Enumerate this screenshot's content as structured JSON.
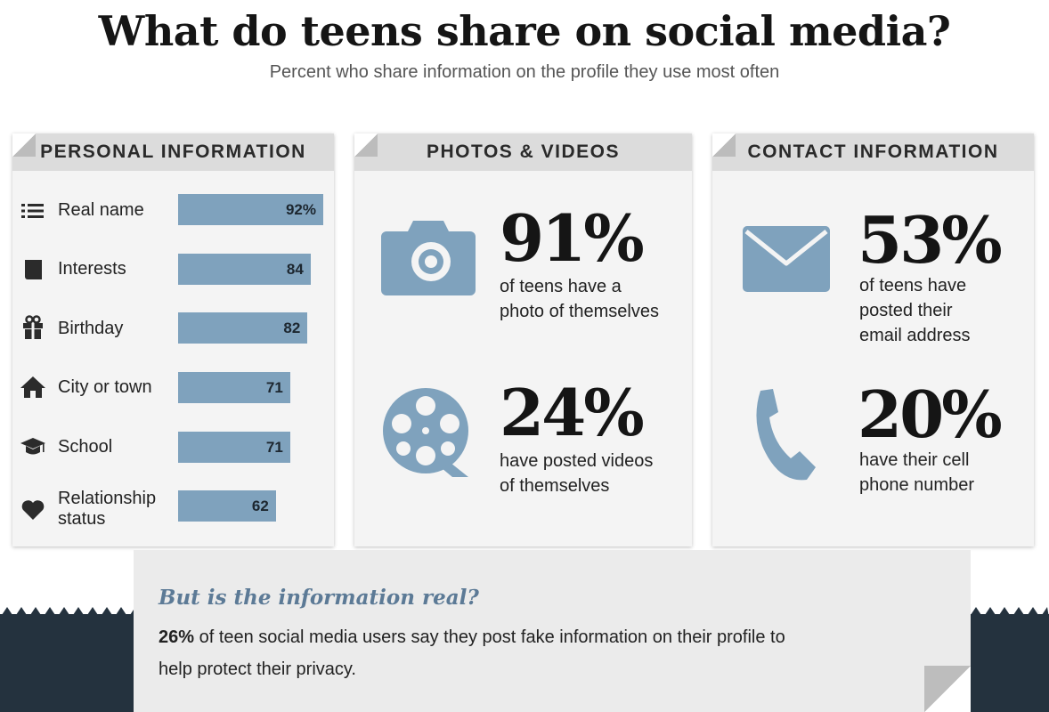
{
  "header": {
    "title": "What do teens share on social media?",
    "subtitle": "Percent who share information on the profile they use most often"
  },
  "colors": {
    "bar": "#7fa2bd",
    "icon": "#7fa2bd",
    "dark_band": "#24323e",
    "note_heading": "#5c7a96"
  },
  "personal_panel": {
    "title": "PERSONAL INFORMATION",
    "rows": [
      {
        "label": "Real name",
        "value_label": "92%",
        "icon": "list-icon"
      },
      {
        "label": "Interests",
        "value_label": "84",
        "icon": "book-icon"
      },
      {
        "label": "Birthday",
        "value_label": "82",
        "icon": "gift-icon"
      },
      {
        "label": "City or town",
        "value_label": "71",
        "icon": "house-icon"
      },
      {
        "label": "School",
        "value_label": "71",
        "icon": "graduation-cap-icon"
      },
      {
        "label": "Relationship",
        "label2": "status",
        "value_label": "62",
        "icon": "heart-icon"
      }
    ]
  },
  "photos_panel": {
    "title": "PHOTOS & VIDEOS",
    "stats": [
      {
        "pct": "91%",
        "line1": "of teens have a",
        "line2": "photo of themselves",
        "icon": "camera-icon"
      },
      {
        "pct": "24%",
        "line1": "have posted videos",
        "line2": "of themselves",
        "icon": "film-reel-icon"
      }
    ]
  },
  "contact_panel": {
    "title": "CONTACT INFORMATION",
    "stats": [
      {
        "pct": "53%",
        "line1": "of teens have",
        "line2": "posted their",
        "line3": "email address",
        "icon": "envelope-icon"
      },
      {
        "pct": "20%",
        "line1": "have their cell",
        "line2": "phone number",
        "icon": "phone-icon"
      }
    ]
  },
  "note": {
    "heading": "But is the information real?",
    "pct": "26%",
    "body_line1": " of teen social media users say they post fake information on their profile to",
    "body_line2": "help protect their privacy."
  },
  "chart_data": {
    "type": "bar",
    "title": "What do teens share on social media?",
    "subtitle": "Percent who share information on the profile they use most often",
    "categories": [
      "Real name",
      "Interests",
      "Birthday",
      "City or town",
      "School",
      "Relationship status"
    ],
    "values": [
      92,
      84,
      82,
      71,
      71,
      62
    ],
    "orientation": "horizontal",
    "ylim": [
      0,
      100
    ]
  }
}
